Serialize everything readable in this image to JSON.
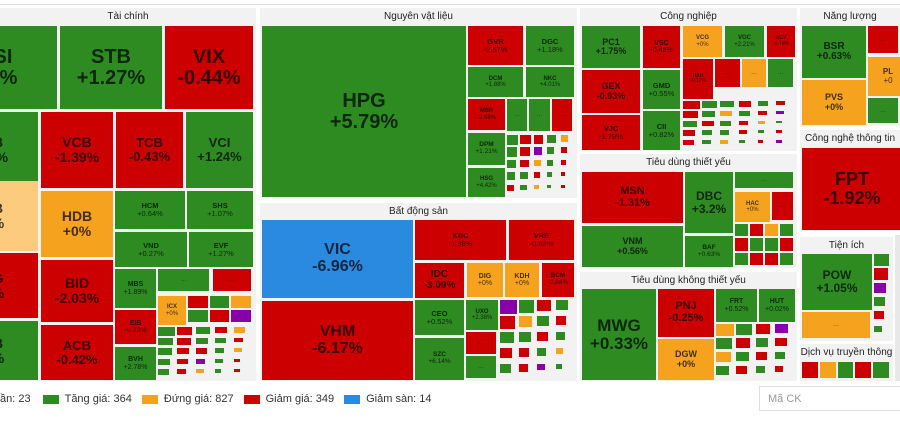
{
  "colors": {
    "up": "#2e8b22",
    "down": "#cc0000",
    "flat": "#f5a21e",
    "floor": "#2a8ae0",
    "ceiling": "#8a00a8",
    "highlight": "#fccb7e"
  },
  "more_label": "...",
  "sectors": [
    {
      "title": "Tài chính",
      "tiles": [
        {
          "ticker": "SI",
          "change": "1%",
          "status": "up"
        },
        {
          "ticker": "STB",
          "change": "+1.27%",
          "status": "up"
        },
        {
          "ticker": "VIX",
          "change": "-0.44%",
          "status": "down"
        },
        {
          "ticker": "B",
          "change": "6%",
          "status": "up"
        },
        {
          "ticker": "VCB",
          "change": "-1.39%",
          "status": "down"
        },
        {
          "ticker": "TCB",
          "change": "-0.43%",
          "status": "down"
        },
        {
          "ticker": "VCI",
          "change": "+1.24%",
          "status": "up"
        },
        {
          "ticker": "B",
          "change": "%",
          "status": "highlight"
        },
        {
          "ticker": "HDB",
          "change": "+0%",
          "status": "flat"
        },
        {
          "ticker": "G",
          "change": "%",
          "status": "down"
        },
        {
          "ticker": "B",
          "change": "%",
          "status": "up"
        },
        {
          "ticker": "BID",
          "change": "-2.03%",
          "status": "down"
        },
        {
          "ticker": "ACB",
          "change": "-0.42%",
          "status": "down"
        },
        {
          "ticker": "HCM",
          "change": "+0.64%",
          "status": "up"
        },
        {
          "ticker": "SHS",
          "change": "+1.07%",
          "status": "up"
        },
        {
          "ticker": "VND",
          "change": "+0.27%",
          "status": "up"
        },
        {
          "ticker": "EVF",
          "change": "+1.27%",
          "status": "up"
        },
        {
          "ticker": "MBS",
          "change": "+1.89%",
          "status": "up"
        },
        {
          "ticker": "ICX",
          "change": "+0%",
          "status": "flat"
        },
        {
          "ticker": "EIB",
          "change": "-0.23%",
          "status": "down"
        },
        {
          "ticker": "BVH",
          "change": "+2.78%",
          "status": "up"
        }
      ]
    },
    {
      "title": "Nguyên vật liệu",
      "tiles": [
        {
          "ticker": "HPG",
          "change": "+5.79%",
          "status": "up"
        },
        {
          "ticker": "GVR",
          "change": "-2.57%",
          "status": "down"
        },
        {
          "ticker": "DGC",
          "change": "+1.18%",
          "status": "up"
        },
        {
          "ticker": "DCM",
          "change": "+1.88%",
          "status": "up"
        },
        {
          "ticker": "NKC",
          "change": "+4.01%",
          "status": "up"
        },
        {
          "ticker": "MSR",
          "change": "-2.68%",
          "status": "down"
        },
        {
          "ticker": "DPM",
          "change": "+1.21%",
          "status": "up"
        },
        {
          "ticker": "HSG",
          "change": "+4.42%",
          "status": "up"
        }
      ]
    },
    {
      "title": "Bất động sản",
      "tiles": [
        {
          "ticker": "VIC",
          "change": "-6.96%",
          "status": "floor"
        },
        {
          "ticker": "VHM",
          "change": "-6.17%",
          "status": "down"
        },
        {
          "ticker": "KBC",
          "change": "-1.98%",
          "status": "down"
        },
        {
          "ticker": "VRE",
          "change": "-0.53%",
          "status": "down"
        },
        {
          "ticker": "IDC",
          "change": "-3.09%",
          "status": "down"
        },
        {
          "ticker": "DIG",
          "change": "+0%",
          "status": "flat"
        },
        {
          "ticker": "KDH",
          "change": "+0%",
          "status": "flat"
        },
        {
          "ticker": "BCM",
          "change": "-2.84%",
          "status": "down"
        },
        {
          "ticker": "CEO",
          "change": "+0.52%",
          "status": "up"
        },
        {
          "ticker": "SZC",
          "change": "+6.14%",
          "status": "up"
        },
        {
          "ticker": "UXO",
          "change": "+2.38%",
          "status": "up"
        }
      ]
    },
    {
      "title": "Công nghiệp",
      "tiles": [
        {
          "ticker": "PC1",
          "change": "+1.75%",
          "status": "up"
        },
        {
          "ticker": "VSC",
          "change": "-0.45%",
          "status": "down"
        },
        {
          "ticker": "VCG",
          "change": "+0%",
          "status": "flat"
        },
        {
          "ticker": "VGC",
          "change": "+2.21%",
          "status": "up"
        },
        {
          "ticker": "ACV",
          "change": "-0.76%",
          "status": "down"
        },
        {
          "ticker": "GEX",
          "change": "-0.93%",
          "status": "down"
        },
        {
          "ticker": "VJC",
          "change": "-1.79%",
          "status": "down"
        },
        {
          "ticker": "GMD",
          "change": "+0.55%",
          "status": "up"
        },
        {
          "ticker": "CII",
          "change": "+0.82%",
          "status": "up"
        },
        {
          "ticker": "HAH",
          "change": "-0.17%",
          "status": "down"
        }
      ]
    },
    {
      "title": "Tiêu dùng thiết yếu",
      "tiles": [
        {
          "ticker": "MSN",
          "change": "-1.31%",
          "status": "down"
        },
        {
          "ticker": "VNM",
          "change": "+0.56%",
          "status": "up"
        },
        {
          "ticker": "DBC",
          "change": "+3.2%",
          "status": "up"
        },
        {
          "ticker": "BAF",
          "change": "+0.63%",
          "status": "up"
        },
        {
          "ticker": "HAC",
          "change": "+0%",
          "status": "flat"
        }
      ]
    },
    {
      "title": "Tiêu dùng không thiết yếu",
      "tiles": [
        {
          "ticker": "MWG",
          "change": "+0.33%",
          "status": "up"
        },
        {
          "ticker": "PNJ",
          "change": "-0.25%",
          "status": "down"
        },
        {
          "ticker": "DGW",
          "change": "+0%",
          "status": "flat"
        },
        {
          "ticker": "FRT",
          "change": "+0.52%",
          "status": "up"
        },
        {
          "ticker": "HUT",
          "change": "+0.02%",
          "status": "up"
        }
      ]
    },
    {
      "title": "Năng lượng",
      "tiles": [
        {
          "ticker": "BSR",
          "change": "+0.63%",
          "status": "up"
        },
        {
          "ticker": "PVS",
          "change": "+0%",
          "status": "flat"
        },
        {
          "ticker": "PL",
          "change": "+0",
          "status": "flat"
        }
      ]
    },
    {
      "title": "Công nghệ thông tin",
      "tiles": [
        {
          "ticker": "FPT",
          "change": "-1.92%",
          "status": "down"
        }
      ]
    },
    {
      "title": "Tiện ích",
      "tiles": [
        {
          "ticker": "POW",
          "change": "+1.05%",
          "status": "up"
        }
      ]
    },
    {
      "title": "Dịch vụ truyền thông",
      "tiles": []
    }
  ],
  "legend": [
    {
      "label": "ần: 23",
      "status": "ceiling"
    },
    {
      "label": "Tăng giá: 364",
      "status": "up"
    },
    {
      "label": "Đứng giá: 827",
      "status": "flat"
    },
    {
      "label": "Giảm giá: 349",
      "status": "down"
    },
    {
      "label": "Giảm sàn: 14",
      "status": "floor"
    }
  ],
  "search": {
    "placeholder": "Mã CK"
  }
}
